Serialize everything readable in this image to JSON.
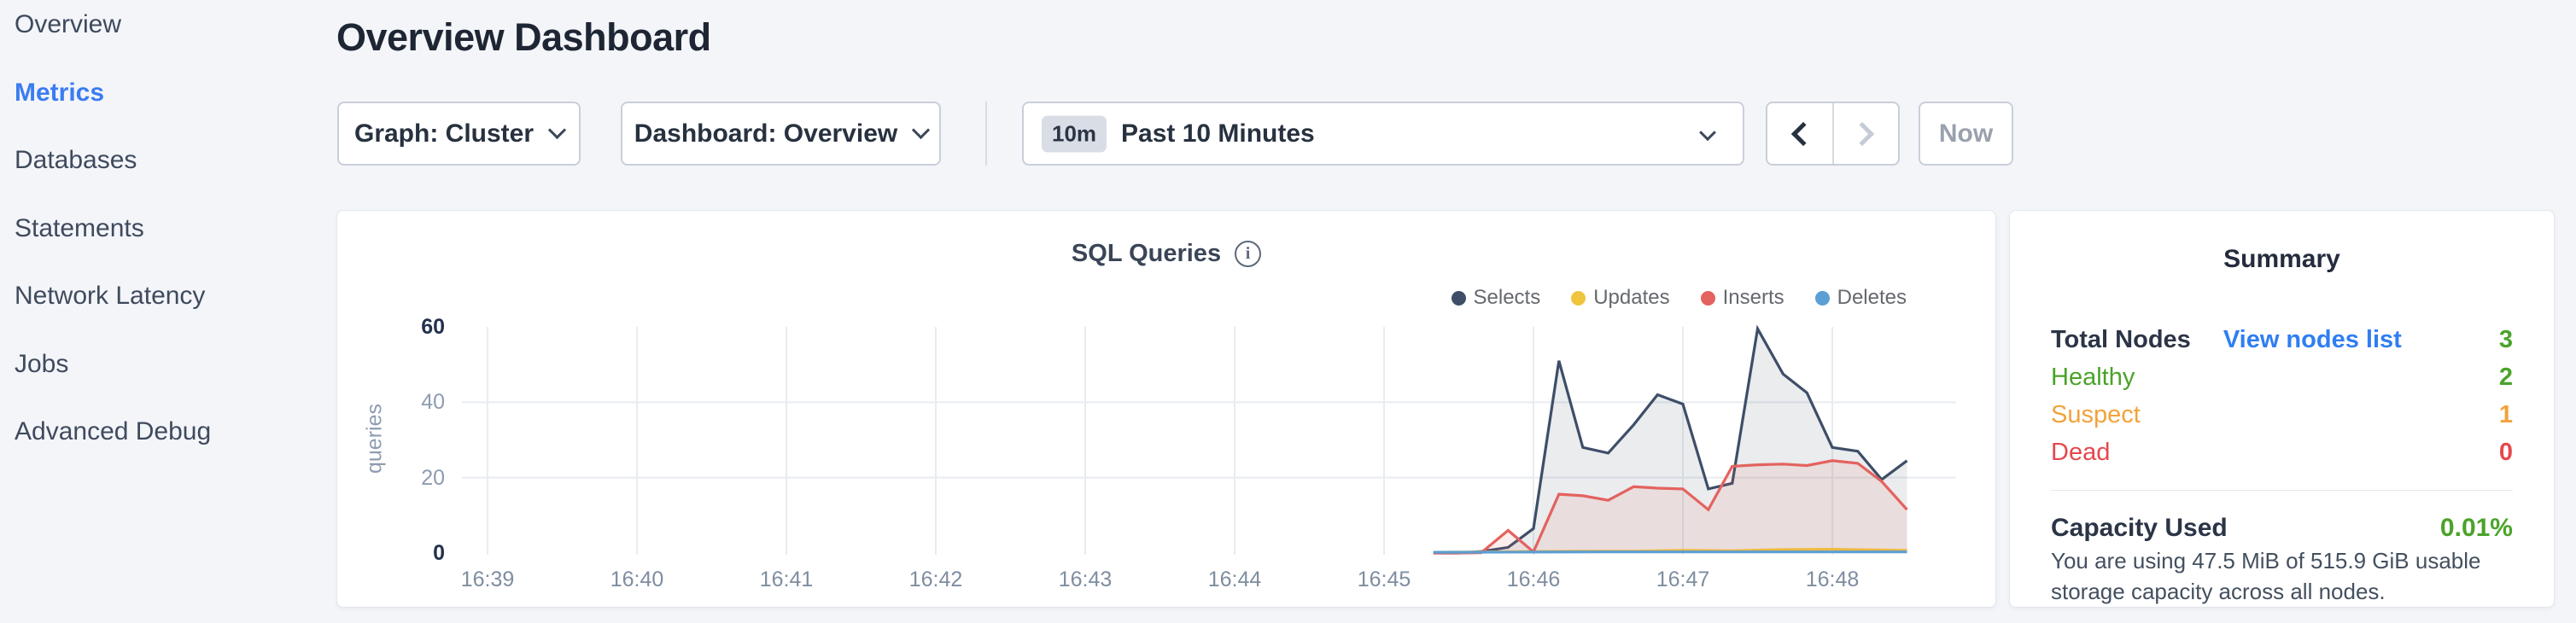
{
  "sidebar": {
    "items": [
      {
        "label": "Overview",
        "active": false
      },
      {
        "label": "Metrics",
        "active": true
      },
      {
        "label": "Databases",
        "active": false
      },
      {
        "label": "Statements",
        "active": false
      },
      {
        "label": "Network Latency",
        "active": false
      },
      {
        "label": "Jobs",
        "active": false
      },
      {
        "label": "Advanced Debug",
        "active": false
      }
    ]
  },
  "header": {
    "title": "Overview Dashboard"
  },
  "toolbar": {
    "graph_dropdown": {
      "label": "Graph: Cluster"
    },
    "dashboard_dropdown": {
      "label": "Dashboard: Overview"
    },
    "time_selector": {
      "badge": "10m",
      "label": "Past 10 Minutes"
    },
    "now_button": {
      "label": "Now"
    }
  },
  "chart": {
    "title": "SQL Queries",
    "info_icon_glyph": "i"
  },
  "chart_data": {
    "type": "area",
    "title": "SQL Queries",
    "xlabel": "",
    "ylabel": "queries",
    "x_ticks": [
      "16:39",
      "16:40",
      "16:41",
      "16:42",
      "16:43",
      "16:44",
      "16:45",
      "16:46",
      "16:47",
      "16:48"
    ],
    "y_ticks": [
      0,
      20,
      40,
      60
    ],
    "ylim": [
      0,
      60
    ],
    "grid": true,
    "legend_position": "top-right",
    "x_unit": "minutes since 16:39",
    "series": [
      {
        "name": "Selects",
        "color": "#3e4e68",
        "points": [
          [
            6.33,
            0
          ],
          [
            6.5,
            0
          ],
          [
            6.65,
            0.4
          ],
          [
            6.83,
            1.5
          ],
          [
            7.0,
            6.5
          ],
          [
            7.17,
            51
          ],
          [
            7.33,
            28
          ],
          [
            7.5,
            26.5
          ],
          [
            7.67,
            34
          ],
          [
            7.83,
            42
          ],
          [
            8.0,
            39.5
          ],
          [
            8.17,
            17
          ],
          [
            8.33,
            18.5
          ],
          [
            8.5,
            59.5
          ],
          [
            8.67,
            47.5
          ],
          [
            8.83,
            42.5
          ],
          [
            9.0,
            28
          ],
          [
            9.17,
            27
          ],
          [
            9.33,
            19.5
          ],
          [
            9.5,
            24.5
          ]
        ]
      },
      {
        "name": "Updates",
        "color": "#f0c53d",
        "points": [
          [
            6.33,
            0.2
          ],
          [
            6.67,
            0.3
          ],
          [
            7.0,
            0.4
          ],
          [
            7.33,
            0.5
          ],
          [
            7.67,
            0.5
          ],
          [
            8.0,
            0.7
          ],
          [
            8.33,
            0.6
          ],
          [
            8.67,
            0.9
          ],
          [
            9.0,
            1.0
          ],
          [
            9.33,
            0.8
          ],
          [
            9.5,
            0.7
          ]
        ]
      },
      {
        "name": "Inserts",
        "color": "#e4625f",
        "points": [
          [
            6.33,
            0
          ],
          [
            6.5,
            0
          ],
          [
            6.65,
            0.1
          ],
          [
            6.83,
            6
          ],
          [
            7.0,
            0.3
          ],
          [
            7.17,
            15.6
          ],
          [
            7.33,
            15.2
          ],
          [
            7.5,
            14
          ],
          [
            7.67,
            17.6
          ],
          [
            7.83,
            17.2
          ],
          [
            8.0,
            17
          ],
          [
            8.17,
            11.5
          ],
          [
            8.33,
            23
          ],
          [
            8.5,
            23.4
          ],
          [
            8.67,
            23.6
          ],
          [
            8.83,
            23.2
          ],
          [
            9.0,
            24.5
          ],
          [
            9.17,
            23.8
          ],
          [
            9.33,
            19
          ],
          [
            9.5,
            11.5
          ]
        ]
      },
      {
        "name": "Deletes",
        "color": "#5b9fd4",
        "points": [
          [
            6.33,
            0.2
          ],
          [
            7.0,
            0.25
          ],
          [
            7.5,
            0.3
          ],
          [
            8.0,
            0.3
          ],
          [
            8.5,
            0.3
          ],
          [
            9.0,
            0.3
          ],
          [
            9.5,
            0.3
          ]
        ]
      }
    ]
  },
  "summary": {
    "title": "Summary",
    "rows": [
      {
        "label": "Total Nodes",
        "link": "View nodes list",
        "value": "3",
        "label_class": "bold",
        "value_class": "c-green"
      },
      {
        "label": "Healthy",
        "value": "2",
        "label_class": "c-green",
        "value_class": "c-green"
      },
      {
        "label": "Suspect",
        "value": "1",
        "label_class": "c-orange",
        "value_class": "c-orange"
      },
      {
        "label": "Dead",
        "value": "0",
        "label_class": "c-red",
        "value_class": "c-red"
      }
    ],
    "capacity": {
      "label": "Capacity Used",
      "value": "0.01%",
      "value_color": "#4aa32a",
      "description": "You are using 47.5 MiB of 515.9 GiB usable storage capacity across all nodes."
    }
  }
}
